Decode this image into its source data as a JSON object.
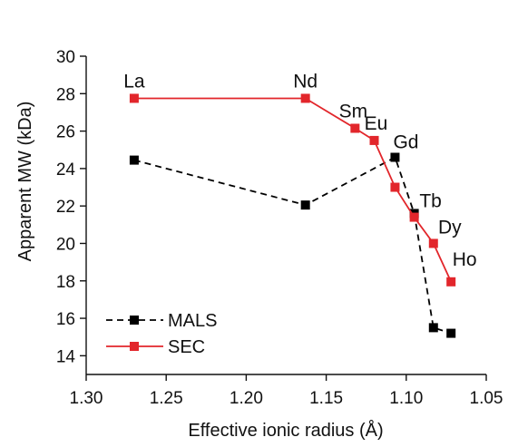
{
  "chart_data": {
    "type": "line",
    "title": "",
    "xlabel": "Effective ionic radius (Å)",
    "ylabel": "Apparent MW (kDa)",
    "xlim": [
      1.3,
      1.05
    ],
    "x_reversed": true,
    "ylim": [
      13,
      30
    ],
    "x_ticks": [
      "1.30",
      "1.25",
      "1.20",
      "1.15",
      "1.10",
      "1.05"
    ],
    "y_ticks": [
      "14",
      "16",
      "18",
      "20",
      "22",
      "24",
      "26",
      "28",
      "30"
    ],
    "legend_position": "bottom-left",
    "point_labels": [
      {
        "text": "La",
        "x": 1.27,
        "y": 27.75
      },
      {
        "text": "Nd",
        "x": 1.163,
        "y": 27.75
      },
      {
        "text": "Sm",
        "x": 1.132,
        "y": 26.15
      },
      {
        "text": "Eu",
        "x": 1.12,
        "y": 25.5
      },
      {
        "text": "Gd",
        "x": 1.107,
        "y": 24.6
      },
      {
        "text": "Tb",
        "x": 1.095,
        "y": 21.4
      },
      {
        "text": "Dy",
        "x": 1.083,
        "y": 20.0
      },
      {
        "text": "Ho",
        "x": 1.072,
        "y": 17.95
      }
    ],
    "series": [
      {
        "name": "MALS",
        "color": "#000000",
        "line_style": "dashed",
        "points": [
          {
            "x": 1.27,
            "y": 24.45
          },
          {
            "x": 1.163,
            "y": 22.05
          },
          {
            "x": 1.107,
            "y": 24.6
          },
          {
            "x": 1.095,
            "y": 21.6
          },
          {
            "x": 1.083,
            "y": 15.5
          },
          {
            "x": 1.072,
            "y": 15.2
          }
        ]
      },
      {
        "name": "SEC",
        "color": "#e2262b",
        "line_style": "solid",
        "points": [
          {
            "x": 1.27,
            "y": 27.75
          },
          {
            "x": 1.163,
            "y": 27.75
          },
          {
            "x": 1.132,
            "y": 26.15
          },
          {
            "x": 1.12,
            "y": 25.5
          },
          {
            "x": 1.107,
            "y": 23.0
          },
          {
            "x": 1.095,
            "y": 21.4
          },
          {
            "x": 1.083,
            "y": 20.0
          },
          {
            "x": 1.072,
            "y": 17.95
          }
        ]
      }
    ]
  }
}
